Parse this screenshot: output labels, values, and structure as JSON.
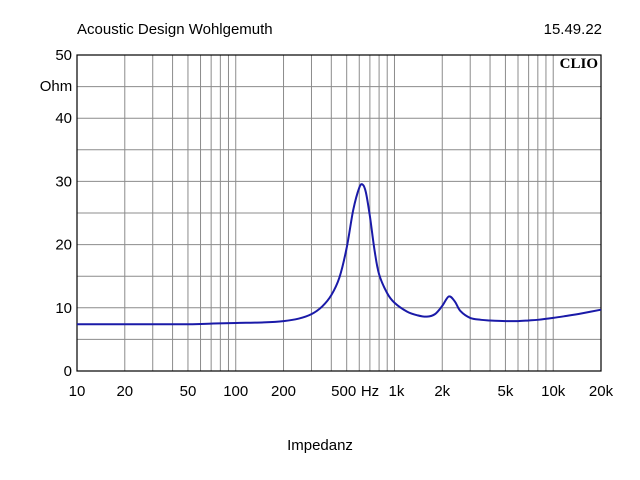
{
  "header": {
    "title": "Acoustic Design Wohlgemuth",
    "time": "15.49.22",
    "logo_text": "CLIO"
  },
  "colors": {
    "curve": "#1a1aa8",
    "grid": "#8c8c8c",
    "frame": "#000000",
    "background": "#ffffff"
  },
  "chart_data": {
    "type": "line",
    "title": "",
    "xlabel": "Impedanz",
    "ylabel": "Ohm",
    "x_scale": "log",
    "xlim": [
      10,
      20000
    ],
    "ylim": [
      0,
      50
    ],
    "grid": true,
    "y_ticks": [
      {
        "value": 0,
        "label": "0"
      },
      {
        "value": 10,
        "label": "10"
      },
      {
        "value": 20,
        "label": "20"
      },
      {
        "value": 30,
        "label": "30"
      },
      {
        "value": 40,
        "label": "40"
      },
      {
        "value": 50,
        "label": "50"
      }
    ],
    "x_ticks": [
      {
        "value": 10,
        "label": "10"
      },
      {
        "value": 20,
        "label": "20"
      },
      {
        "value": 50,
        "label": "50"
      },
      {
        "value": 100,
        "label": "100"
      },
      {
        "value": 200,
        "label": "200"
      },
      {
        "value": 500,
        "label": "500"
      },
      {
        "value": 1000,
        "label": "1k"
      },
      {
        "value": 2000,
        "label": "2k"
      },
      {
        "value": 5000,
        "label": "5k"
      },
      {
        "value": 10000,
        "label": "10k"
      },
      {
        "value": 20000,
        "label": "20k"
      }
    ],
    "x_unit_label": "Hz",
    "series": [
      {
        "color": "#1a1aa8",
        "points": [
          [
            10,
            7.4
          ],
          [
            20,
            7.4
          ],
          [
            50,
            7.4
          ],
          [
            70,
            7.5
          ],
          [
            100,
            7.6
          ],
          [
            150,
            7.7
          ],
          [
            200,
            7.9
          ],
          [
            250,
            8.3
          ],
          [
            300,
            9.0
          ],
          [
            350,
            10.2
          ],
          [
            400,
            12.0
          ],
          [
            450,
            14.8
          ],
          [
            500,
            19.5
          ],
          [
            550,
            25.5
          ],
          [
            600,
            29.0
          ],
          [
            630,
            29.5
          ],
          [
            660,
            28.3
          ],
          [
            700,
            24.5
          ],
          [
            750,
            19.0
          ],
          [
            800,
            15.3
          ],
          [
            900,
            12.3
          ],
          [
            1000,
            10.8
          ],
          [
            1200,
            9.4
          ],
          [
            1400,
            8.8
          ],
          [
            1600,
            8.6
          ],
          [
            1800,
            9.0
          ],
          [
            2000,
            10.3
          ],
          [
            2200,
            11.8
          ],
          [
            2400,
            11.0
          ],
          [
            2600,
            9.5
          ],
          [
            3000,
            8.4
          ],
          [
            3500,
            8.1
          ],
          [
            4000,
            8.0
          ],
          [
            5000,
            7.9
          ],
          [
            6000,
            7.9
          ],
          [
            7000,
            8.0
          ],
          [
            8000,
            8.1
          ],
          [
            10000,
            8.4
          ],
          [
            12000,
            8.7
          ],
          [
            15000,
            9.1
          ],
          [
            20000,
            9.7
          ]
        ]
      }
    ]
  }
}
